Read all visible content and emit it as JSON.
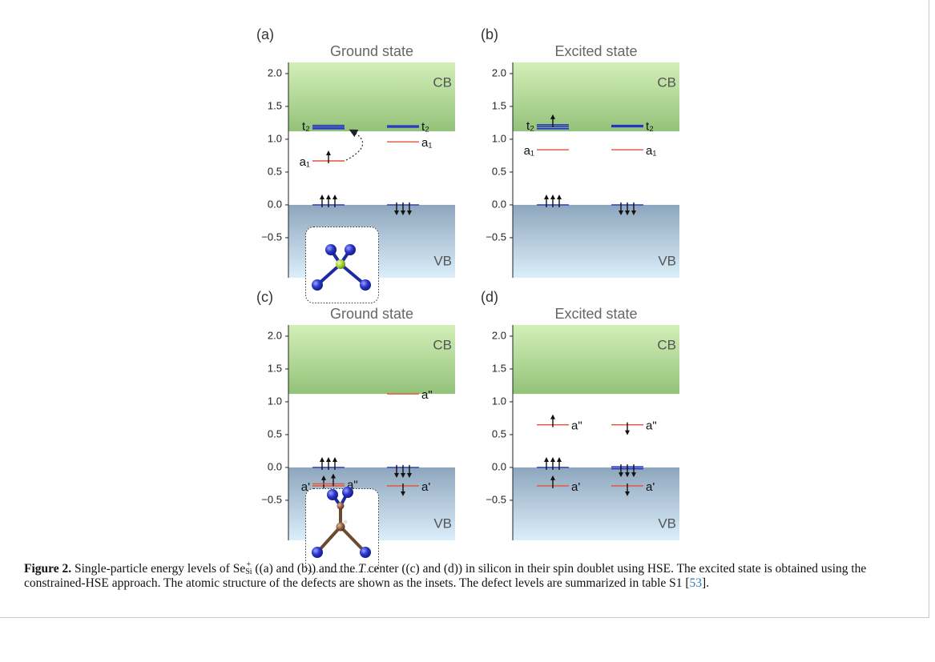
{
  "chart_data": [
    {
      "type": "energy-levels",
      "panel": "(a)",
      "title": "Ground state",
      "ylim": [
        -1.11,
        2.17
      ],
      "yticks": [
        {
          "value": 2,
          "label": "2.0"
        },
        {
          "value": 1.5,
          "label": "1.5"
        },
        {
          "value": 1,
          "label": "1.0"
        },
        {
          "value": 0.5,
          "label": "0.5"
        },
        {
          "value": 0,
          "label": "0.0"
        },
        {
          "value": -0.5,
          "label": "−0.5"
        }
      ],
      "cb_edge": 1.12,
      "vb_edge": 0,
      "cb_label": "CB",
      "vb_label": "VB",
      "spin_up": [
        {
          "values": [
            1.21,
            1.185,
            1.16
          ],
          "color": "#2433c4",
          "label_left": "t₂",
          "arrows": 0
        },
        {
          "values": [
            0.67
          ],
          "color": "#e0523a",
          "label_left": "a₁",
          "arrows": 1
        },
        {
          "values": [
            0
          ],
          "color": "#2433c4",
          "arrows": 3
        }
      ],
      "spin_down": [
        {
          "values": [
            1.205,
            1.185
          ],
          "color": "#2433c4",
          "label_right": "t₂",
          "arrows": 0
        },
        {
          "values": [
            0.96
          ],
          "color": "#e0523a",
          "label_right": "a₁",
          "arrows": 0
        },
        {
          "values": [
            0
          ],
          "color": "#2433c4",
          "arrows": 3
        }
      ]
    },
    {
      "type": "energy-levels",
      "panel": "(b)",
      "title": "Excited state",
      "ylim": [
        -1.11,
        2.17
      ],
      "yticks": [
        {
          "value": 2,
          "label": "2.0"
        },
        {
          "value": 1.5,
          "label": "1.5"
        },
        {
          "value": 1,
          "label": "1.0"
        },
        {
          "value": 0.5,
          "label": "0.5"
        },
        {
          "value": 0,
          "label": "0.0"
        },
        {
          "value": -0.5,
          "label": "−0.5"
        }
      ],
      "cb_edge": 1.12,
      "vb_edge": 0,
      "cb_label": "CB",
      "vb_label": "VB",
      "spin_up": [
        {
          "values": [
            1.22,
            1.19,
            1.16
          ],
          "color": "#2433c4",
          "label_left": "t₂",
          "arrows": 1
        },
        {
          "values": [
            0.84
          ],
          "color": "#e0523a",
          "label_left": "a₁",
          "arrows": 0
        },
        {
          "values": [
            0
          ],
          "color": "#2433c4",
          "arrows": 3
        }
      ],
      "spin_down": [
        {
          "values": [
            1.21,
            1.19
          ],
          "color": "#2433c4",
          "label_right": "t₂",
          "arrows": 0
        },
        {
          "values": [
            0.84
          ],
          "color": "#e0523a",
          "label_right": "a₁",
          "arrows": 0
        },
        {
          "values": [
            0
          ],
          "color": "#2433c4",
          "arrows": 3
        }
      ]
    },
    {
      "type": "energy-levels",
      "panel": "(c)",
      "title": "Ground state",
      "ylim": [
        -1.11,
        2.17
      ],
      "yticks": [
        {
          "value": 2,
          "label": "2.0"
        },
        {
          "value": 1.5,
          "label": "1.5"
        },
        {
          "value": 1,
          "label": "1.0"
        },
        {
          "value": 0.5,
          "label": "0.5"
        },
        {
          "value": 0,
          "label": "0.0"
        },
        {
          "value": -0.5,
          "label": "−0.5"
        }
      ],
      "cb_edge": 1.12,
      "vb_edge": 0,
      "cb_label": "CB",
      "vb_label": "VB",
      "spin_up": [
        {
          "values": [
            0
          ],
          "color": "#2433c4",
          "arrows": 3
        },
        {
          "values": [
            -0.28
          ],
          "color": "#e0523a",
          "label_left": "a'",
          "arrows": 1
        },
        {
          "values": [
            -0.25
          ],
          "color": "#e0523a",
          "label_right": "a\"",
          "arrows": 1
        }
      ],
      "spin_down": [
        {
          "values": [
            1.12
          ],
          "color": "#e0523a",
          "label_right": "a\"",
          "arrows": 0
        },
        {
          "values": [
            0
          ],
          "color": "#2433c4",
          "arrows": 3
        },
        {
          "values": [
            -0.28
          ],
          "color": "#e0523a",
          "label_right": "a'",
          "arrows": 1
        }
      ]
    },
    {
      "type": "energy-levels",
      "panel": "(d)",
      "title": "Excited state",
      "ylim": [
        -1.11,
        2.17
      ],
      "yticks": [
        {
          "value": 2,
          "label": "2.0"
        },
        {
          "value": 1.5,
          "label": "1.5"
        },
        {
          "value": 1,
          "label": "1.0"
        },
        {
          "value": 0.5,
          "label": "0.5"
        },
        {
          "value": 0,
          "label": "0.0"
        },
        {
          "value": -0.5,
          "label": "−0.5"
        }
      ],
      "cb_edge": 1.12,
      "vb_edge": 0,
      "cb_label": "CB",
      "vb_label": "VB",
      "spin_up": [
        {
          "values": [
            0.65
          ],
          "color": "#e0523a",
          "label_right": "a\"",
          "arrows": 1
        },
        {
          "values": [
            0
          ],
          "color": "#2433c4",
          "arrows": 3
        },
        {
          "values": [
            -0.28
          ],
          "color": "#e0523a",
          "label_right": "a'",
          "arrows": 1
        }
      ],
      "spin_down": [
        {
          "values": [
            0.65
          ],
          "color": "#e0523a",
          "label_right": "a\"",
          "arrows": 1
        },
        {
          "values": [
            0.01,
            -0.02
          ],
          "color": "#2433c4",
          "arrows": 3
        },
        {
          "values": [
            -0.28
          ],
          "color": "#e0523a",
          "label_right": "a'",
          "arrows": 1
        }
      ]
    }
  ],
  "caption": {
    "label": "Figure 2.",
    "text1": " Single-particle energy levels of ",
    "species": "Se",
    "sub": "Si",
    "sup": "+",
    "text2": " ((a) and (b)) and the ",
    "italic": "T",
    "text3": " center ((c) and (d)) in silicon in their spin doublet using HSE. The excited state is obtained using the constrained-HSE approach. The atomic structure of the defects are shown as the insets. The defect levels are summarized in table S1 [",
    "ref": "53",
    "text4": "]."
  }
}
